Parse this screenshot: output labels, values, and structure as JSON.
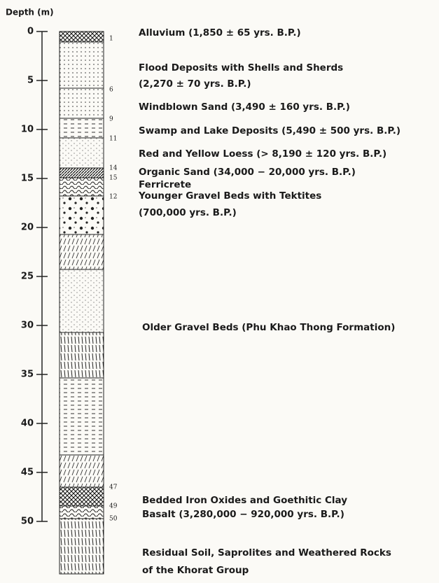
{
  "axis": {
    "label": "Depth (m)",
    "ticks": [
      0,
      5,
      10,
      15,
      20,
      25,
      30,
      35,
      40,
      45,
      50
    ]
  },
  "depth_marks": [
    "1",
    "6",
    "9",
    "11",
    "14",
    "15",
    "12",
    "47",
    "49",
    "50"
  ],
  "layers": [
    {
      "lines": [
        "Alluvium (1,850 ± 65 yrs. B.P.)"
      ]
    },
    {
      "lines": [
        "Flood Deposits with Shells and Sherds",
        "(2,270 ± 70 yrs. B.P.)"
      ]
    },
    {
      "lines": [
        "Windblown Sand (3,490 ± 160 yrs. B.P.)"
      ]
    },
    {
      "lines": [
        "Swamp and Lake Deposits (5,490 ± 500 yrs. B.P.)"
      ]
    },
    {
      "lines": [
        "Red and Yellow Loess (> 8,190 ± 120 yrs. B.P.)"
      ]
    },
    {
      "lines": [
        "Organic Sand (34,000 − 20,000 yrs. B.P.)"
      ]
    },
    {
      "lines": [
        "Ferricrete"
      ]
    },
    {
      "lines": [
        "Younger Gravel Beds with Tektites",
        "(700,000 yrs. B.P.)"
      ]
    },
    {
      "lines": [
        "Older Gravel Beds (Phu Khao Thong Formation)"
      ]
    },
    {
      "lines": [
        "Bedded Iron Oxides and Goethitic Clay"
      ]
    },
    {
      "lines": [
        "Basalt (3,280,000 − 920,000 yrs. B.P.)"
      ]
    },
    {
      "lines": [
        "Residual Soil, Saprolites and Weathered Rocks",
        "of the Khorat Group"
      ]
    }
  ]
}
